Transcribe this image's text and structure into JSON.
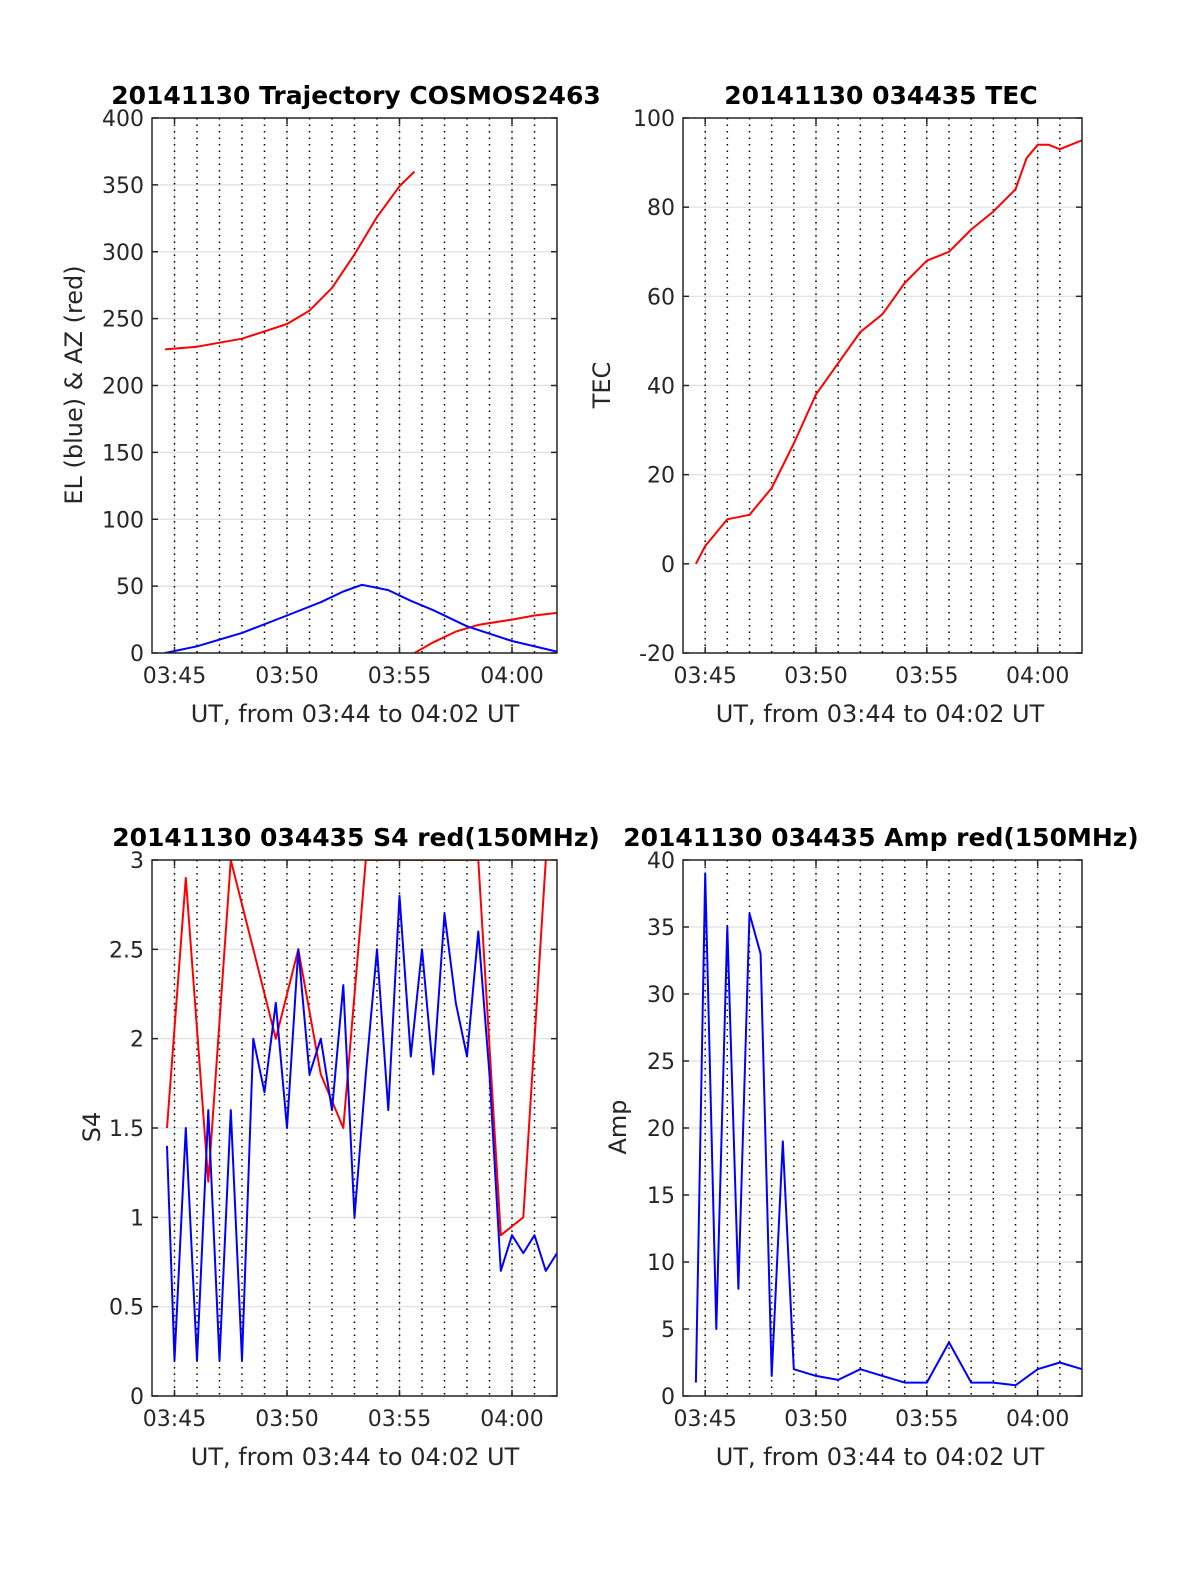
{
  "colors": {
    "red": "#ff0000",
    "blue": "#0000ff",
    "axis": "#262626",
    "grid": "#dfdfdf",
    "vline": "#000000"
  },
  "chart_data": [
    {
      "type": "line",
      "title": "20141130 Trajectory COSMOS2463",
      "xlabel": "UT, from 03:44 to 04:02 UT",
      "ylabel": "EL (blue) & AZ (red)",
      "xlim": [
        "03:44",
        "04:02"
      ],
      "ylim": [
        0,
        400
      ],
      "xticks": [
        "03:45",
        "03:50",
        "03:55",
        "04:00"
      ],
      "yticks": [
        0,
        50,
        100,
        150,
        200,
        250,
        300,
        350,
        400
      ],
      "grid": true,
      "series": [
        {
          "color": "red",
          "x": [
            "03:44:35",
            "03:46:00",
            "03:48:00",
            "03:50:00",
            "03:51:00",
            "03:52:00",
            "03:53:00",
            "03:54:00",
            "03:55:00",
            "03:55:40"
          ],
          "y": [
            227,
            229,
            235,
            246,
            256,
            273,
            298,
            326,
            349,
            360
          ]
        },
        {
          "color": "red",
          "x": [
            "03:55:40",
            "03:56:30",
            "03:57:30",
            "03:58:30",
            "04:00:00",
            "04:01:00",
            "04:02:00"
          ],
          "y": [
            0,
            8,
            16,
            21,
            25,
            28,
            30
          ]
        },
        {
          "color": "blue",
          "x": [
            "03:44:35",
            "03:46:00",
            "03:48:00",
            "03:50:00",
            "03:51:30",
            "03:52:30",
            "03:53:20",
            "03:54:30",
            "03:55:30",
            "03:56:30",
            "03:58:00",
            "04:00:00",
            "04:02:00"
          ],
          "y": [
            0,
            5,
            15,
            28,
            38,
            46,
            51,
            47,
            39,
            32,
            20,
            9,
            1
          ]
        }
      ]
    },
    {
      "type": "line",
      "title": "20141130 034435 TEC",
      "xlabel": "UT, from 03:44 to 04:02 UT",
      "ylabel": "TEC",
      "xlim": [
        "03:44",
        "04:02"
      ],
      "ylim": [
        -20,
        100
      ],
      "xticks": [
        "03:45",
        "03:50",
        "03:55",
        "04:00"
      ],
      "yticks": [
        -20,
        0,
        20,
        40,
        60,
        80,
        100
      ],
      "grid": true,
      "series": [
        {
          "color": "red",
          "x": [
            "03:44:35",
            "03:45:00",
            "03:45:30",
            "03:46:00",
            "03:47:00",
            "03:48:00",
            "03:49:00",
            "03:50:00",
            "03:51:00",
            "03:52:00",
            "03:53:00",
            "03:54:00",
            "03:55:00",
            "03:56:00",
            "03:57:00",
            "03:58:00",
            "03:59:00",
            "03:59:30",
            "04:00:00",
            "04:00:30",
            "04:01:00",
            "04:02:00"
          ],
          "y": [
            0,
            4,
            7,
            10,
            11,
            17,
            27,
            38,
            45,
            52,
            56,
            63,
            68,
            70,
            75,
            79,
            84,
            91,
            94,
            94,
            93,
            95
          ]
        }
      ]
    },
    {
      "type": "line",
      "title": "20141130 034435 S4 red(150MHz)",
      "xlabel": "UT, from 03:44 to 04:02 UT",
      "ylabel": "S4",
      "xlim": [
        "03:44",
        "04:02"
      ],
      "ylim": [
        0,
        3
      ],
      "xticks": [
        "03:45",
        "03:50",
        "03:55",
        "04:00"
      ],
      "yticks": [
        0,
        0.5,
        1,
        1.5,
        2,
        2.5,
        3
      ],
      "grid": true,
      "series": [
        {
          "color": "red",
          "x": [
            "03:44:40",
            "03:45:30",
            "03:46:30",
            "03:47:30",
            "03:48:30",
            "03:49:30",
            "03:50:30",
            "03:51:30",
            "03:52:30",
            "03:53:30",
            "03:54:30",
            "03:55:30",
            "03:56:30",
            "03:57:30",
            "03:58:30",
            "03:59:30",
            "04:00:30",
            "04:01:30"
          ],
          "y": [
            1.5,
            2.9,
            1.2,
            3.0,
            2.5,
            2.0,
            2.5,
            1.8,
            1.5,
            3.0,
            3.0,
            3.0,
            3.0,
            3.0,
            3.0,
            0.9,
            1.0,
            3.0
          ]
        },
        {
          "color": "blue",
          "x": [
            "03:44:40",
            "03:45:00",
            "03:45:30",
            "03:46:00",
            "03:46:30",
            "03:47:00",
            "03:47:30",
            "03:48:00",
            "03:48:30",
            "03:49:00",
            "03:49:30",
            "03:50:00",
            "03:50:30",
            "03:51:00",
            "03:51:30",
            "03:52:00",
            "03:52:30",
            "03:53:00",
            "03:53:30",
            "03:54:00",
            "03:54:30",
            "03:55:00",
            "03:55:30",
            "03:56:00",
            "03:56:30",
            "03:57:00",
            "03:57:30",
            "03:58:00",
            "03:58:30",
            "03:59:00",
            "03:59:30",
            "04:00:00",
            "04:00:30",
            "04:01:00",
            "04:01:30",
            "04:02:00"
          ],
          "y": [
            1.4,
            0.2,
            1.5,
            0.2,
            1.6,
            0.2,
            1.6,
            0.2,
            2.0,
            1.7,
            2.2,
            1.5,
            2.5,
            1.8,
            2.0,
            1.6,
            2.3,
            1.0,
            1.8,
            2.5,
            1.6,
            2.8,
            1.9,
            2.5,
            1.8,
            2.7,
            2.2,
            1.9,
            2.6,
            1.8,
            0.7,
            0.9,
            0.8,
            0.9,
            0.7,
            0.8
          ]
        }
      ]
    },
    {
      "type": "line",
      "title": "20141130 034435 Amp red(150MHz)",
      "xlabel": "UT, from 03:44 to 04:02 UT",
      "ylabel": "Amp",
      "xlim": [
        "03:44",
        "04:02"
      ],
      "ylim": [
        0,
        40
      ],
      "xticks": [
        "03:45",
        "03:50",
        "03:55",
        "04:00"
      ],
      "yticks": [
        0,
        5,
        10,
        15,
        20,
        25,
        30,
        35,
        40
      ],
      "grid": true,
      "series": [
        {
          "color": "blue",
          "x": [
            "03:44:35",
            "03:45:00",
            "03:45:30",
            "03:46:00",
            "03:46:30",
            "03:47:00",
            "03:47:30",
            "03:48:00",
            "03:48:30",
            "03:49:00",
            "03:50:00",
            "03:51:00",
            "03:52:00",
            "03:53:00",
            "03:54:00",
            "03:55:00",
            "03:56:00",
            "03:57:00",
            "03:58:00",
            "03:59:00",
            "04:00:00",
            "04:01:00",
            "04:02:00"
          ],
          "y": [
            1,
            39,
            5,
            35,
            8,
            36,
            33,
            1.5,
            19,
            2,
            1.5,
            1.2,
            2,
            1.5,
            1,
            1,
            4,
            1,
            1,
            0.8,
            2,
            2.5,
            2
          ]
        }
      ]
    }
  ]
}
